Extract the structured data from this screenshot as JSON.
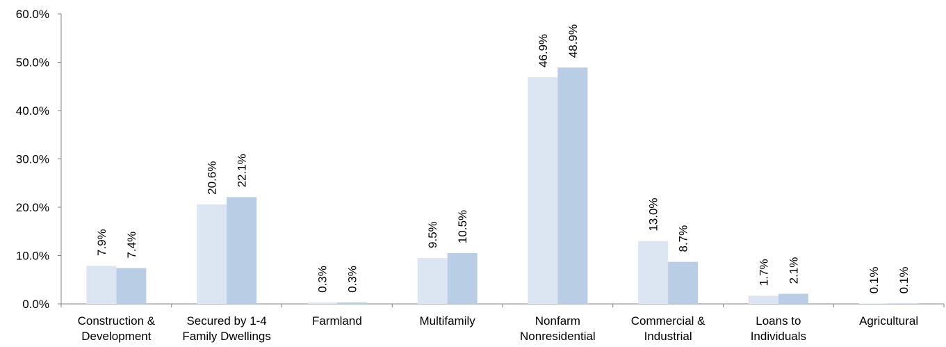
{
  "chart_data": {
    "type": "bar",
    "title": "",
    "xlabel": "",
    "ylabel": "",
    "categories": [
      [
        "Construction &",
        "Development"
      ],
      [
        "Secured by 1-4",
        "Family Dwellings"
      ],
      [
        "Farmland"
      ],
      [
        "Multifamily"
      ],
      [
        "Nonfarm",
        "Nonresidential"
      ],
      [
        "Commercial &",
        "Industrial"
      ],
      [
        "Loans to",
        "Individuals"
      ],
      [
        "Agricultural"
      ]
    ],
    "series": [
      {
        "color": "#dce6f2",
        "values": [
          7.9,
          20.6,
          0.3,
          9.5,
          46.9,
          13.0,
          1.7,
          0.1
        ],
        "labels": [
          "7.9%",
          "20.6%",
          "0.3%",
          "9.5%",
          "46.9%",
          "13.0%",
          "1.7%",
          "0.1%"
        ]
      },
      {
        "color": "#b9cde5",
        "values": [
          7.4,
          22.1,
          0.3,
          10.5,
          48.9,
          8.7,
          2.1,
          0.1
        ],
        "labels": [
          "7.4%",
          "22.1%",
          "0.3%",
          "10.5%",
          "48.9%",
          "8.7%",
          "2.1%",
          "0.1%"
        ]
      }
    ],
    "ylim": [
      0,
      60
    ],
    "yticks": [
      0,
      10,
      20,
      30,
      40,
      50,
      60
    ],
    "ytick_labels": [
      "0.0%",
      "10.0%",
      "20.0%",
      "30.0%",
      "40.0%",
      "50.0%",
      "60.0%"
    ],
    "grid": false,
    "legend": "none"
  }
}
